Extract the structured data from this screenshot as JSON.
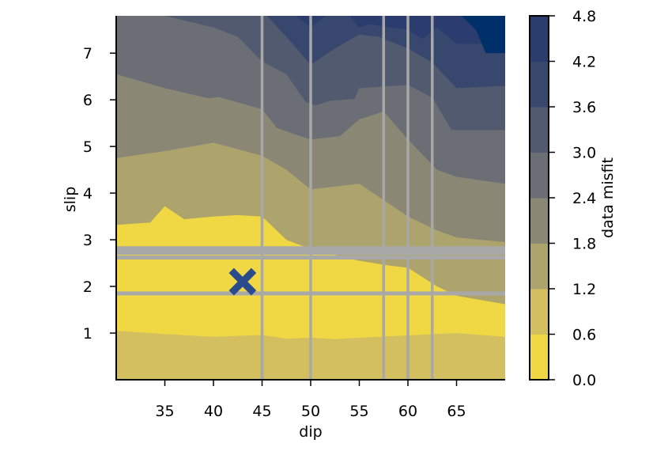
{
  "chart_data": {
    "type": "contour",
    "xlabel": "dip",
    "ylabel": "slip",
    "xlim": [
      30,
      70
    ],
    "ylim": [
      0,
      7.8
    ],
    "x_ticks": [
      35,
      40,
      45,
      50,
      55,
      60,
      65
    ],
    "y_ticks": [
      1,
      2,
      3,
      4,
      5,
      6,
      7
    ],
    "colorbar": {
      "label": "data misfit",
      "levels": [
        0.0,
        0.6,
        1.2,
        1.8,
        2.4,
        3.0,
        3.6,
        4.2,
        4.8
      ],
      "tick_labels": [
        "0.0",
        "0.6",
        "1.2",
        "1.8",
        "2.4",
        "3.0",
        "3.6",
        "4.2",
        "4.8"
      ],
      "colors": [
        "#f0d744",
        "#d3bf5f",
        "#ada36d",
        "#8b8775",
        "#6b6e75",
        "#525a6f",
        "#38476d",
        "#2a3d6e",
        "#00306a"
      ]
    },
    "contour_boundaries": [
      {
        "level": 0.6,
        "points": [
          [
            30,
            1.05
          ],
          [
            35,
            0.98
          ],
          [
            40,
            0.92
          ],
          [
            45,
            0.96
          ],
          [
            47.5,
            0.88
          ],
          [
            50,
            0.9
          ],
          [
            52.5,
            0.87
          ],
          [
            55,
            0.9
          ],
          [
            60,
            0.95
          ],
          [
            65,
            1.0
          ],
          [
            70,
            0.92
          ]
        ],
        "side": "upper"
      },
      {
        "level": 0.6,
        "points": [
          [
            30,
            3.32
          ],
          [
            33.5,
            3.37
          ],
          [
            35,
            3.72
          ],
          [
            37,
            3.44
          ],
          [
            40,
            3.5
          ],
          [
            42.5,
            3.53
          ],
          [
            45,
            3.5
          ],
          [
            47.5,
            3.0
          ],
          [
            50,
            2.8
          ],
          [
            55,
            2.55
          ],
          [
            58,
            2.45
          ],
          [
            60,
            2.4
          ],
          [
            61.5,
            2.2
          ],
          [
            63,
            2.0
          ],
          [
            65,
            1.8
          ],
          [
            70,
            1.62
          ]
        ],
        "side": "lower"
      },
      {
        "level": 1.2,
        "points": [
          [
            30,
            4.75
          ],
          [
            35,
            4.9
          ],
          [
            40,
            5.08
          ],
          [
            45,
            4.8
          ],
          [
            47.5,
            4.5
          ],
          [
            50,
            4.08
          ],
          [
            55,
            4.2
          ],
          [
            57.5,
            3.85
          ],
          [
            60,
            3.5
          ],
          [
            63,
            3.2
          ],
          [
            65,
            3.05
          ],
          [
            70,
            2.95
          ]
        ],
        "side": "lower"
      },
      {
        "level": 1.8,
        "points": [
          [
            30,
            6.55
          ],
          [
            35,
            6.25
          ],
          [
            39.5,
            6.03
          ],
          [
            40.5,
            6.06
          ],
          [
            45,
            5.8
          ],
          [
            46.5,
            5.4
          ],
          [
            48.5,
            5.25
          ],
          [
            50,
            5.15
          ],
          [
            53,
            5.22
          ],
          [
            55,
            5.58
          ],
          [
            57.5,
            5.75
          ],
          [
            60,
            5.15
          ],
          [
            63,
            4.5
          ],
          [
            65,
            4.35
          ],
          [
            70,
            4.2
          ]
        ],
        "side": "lower"
      },
      {
        "level": 2.4,
        "points": [
          [
            30,
            7.8
          ],
          [
            35,
            7.8
          ],
          [
            40,
            7.55
          ],
          [
            42.5,
            7.35
          ],
          [
            45,
            6.82
          ],
          [
            47.5,
            6.55
          ],
          [
            49.5,
            5.95
          ],
          [
            50.5,
            5.88
          ],
          [
            52,
            5.98
          ],
          [
            54.5,
            6.02
          ],
          [
            55,
            6.25
          ],
          [
            60,
            6.32
          ],
          [
            62.5,
            6.05
          ],
          [
            64.5,
            5.35
          ],
          [
            70,
            5.35
          ]
        ],
        "side": "lower"
      },
      {
        "level": 3.0,
        "points": [
          [
            45.5,
            7.8
          ],
          [
            47.5,
            7.35
          ],
          [
            50,
            6.75
          ],
          [
            52.5,
            7.1
          ],
          [
            55,
            7.4
          ],
          [
            57,
            7.35
          ],
          [
            60,
            7.1
          ],
          [
            62.5,
            6.8
          ],
          [
            65,
            6.25
          ],
          [
            70,
            6.3
          ]
        ],
        "side": "lower"
      },
      {
        "level": 3.6,
        "points": [
          [
            48.5,
            7.8
          ],
          [
            50,
            7.55
          ],
          [
            51.5,
            7.8
          ]
        ],
        "side": "lower"
      },
      {
        "level": 3.6,
        "points": [
          [
            54,
            7.8
          ],
          [
            55,
            7.55
          ],
          [
            56,
            7.62
          ],
          [
            60,
            7.5
          ],
          [
            61.5,
            7.3
          ],
          [
            63,
            7.55
          ],
          [
            65,
            7.2
          ],
          [
            70,
            7.2
          ]
        ],
        "side": "lower"
      },
      {
        "level": 4.2,
        "points": [
          [
            65.5,
            7.8
          ],
          [
            67,
            7.5
          ],
          [
            68,
            7.0
          ],
          [
            70,
            7.0
          ]
        ],
        "side": "lower"
      }
    ],
    "vertical_lines_x": [
      45,
      50,
      57.5,
      60,
      62.5
    ],
    "horizontal_lines_y": [
      1.85,
      2.62,
      2.72,
      2.82
    ],
    "marker": {
      "x": 43,
      "y": 2.1,
      "shape": "X",
      "color": "#2a4c8c"
    }
  }
}
